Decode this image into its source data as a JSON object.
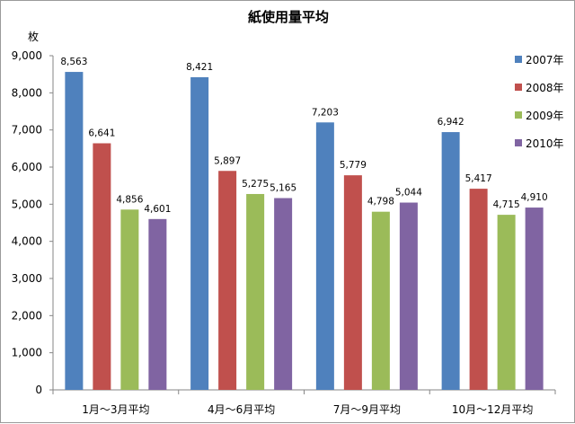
{
  "chart_data": {
    "type": "bar",
    "title": "紙使用量平均",
    "ylabel": "枚",
    "xlabel": "",
    "ylim": [
      0,
      9000
    ],
    "yticks": [
      0,
      1000,
      2000,
      3000,
      4000,
      5000,
      6000,
      7000,
      8000,
      9000
    ],
    "ytick_labels": [
      "0",
      "1,000",
      "2,000",
      "3,000",
      "4,000",
      "5,000",
      "6,000",
      "7,000",
      "8,000",
      "9,000"
    ],
    "categories": [
      "1月～3月平均",
      "4月～6月平均",
      "7月～9月平均",
      "10月～12月平均"
    ],
    "series": [
      {
        "name": "2007年",
        "color": "#4F81BD",
        "values": [
          8563,
          8421,
          7203,
          6942
        ],
        "labels": [
          "8,563",
          "8,421",
          "7,203",
          "6,942"
        ]
      },
      {
        "name": "2008年",
        "color": "#C0504D",
        "values": [
          6641,
          5897,
          5779,
          5417
        ],
        "labels": [
          "6,641",
          "5,897",
          "5,779",
          "5,417"
        ]
      },
      {
        "name": "2009年",
        "color": "#9BBB59",
        "values": [
          4856,
          5275,
          4798,
          4715
        ],
        "labels": [
          "4,856",
          "5,275",
          "4,798",
          "4,715"
        ]
      },
      {
        "name": "2010年",
        "color": "#8064A2",
        "values": [
          4601,
          5165,
          5044,
          4910
        ],
        "labels": [
          "4,601",
          "5,165",
          "5,044",
          "4,910"
        ]
      }
    ],
    "grid": false,
    "legend": "right"
  }
}
